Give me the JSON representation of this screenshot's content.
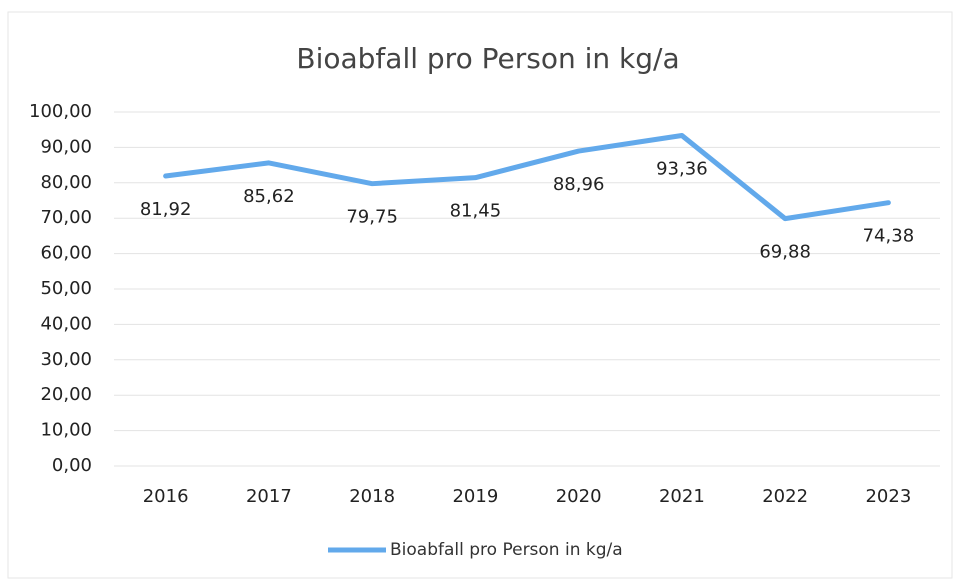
{
  "chart_data": {
    "type": "line",
    "title": "Bioabfall pro Person in kg/a",
    "categories": [
      "2016",
      "2017",
      "2018",
      "2019",
      "2020",
      "2021",
      "2022",
      "2023"
    ],
    "series": [
      {
        "name": "Bioabfall pro Person in kg/a",
        "color": "#62a9eb",
        "values": [
          81.92,
          85.62,
          79.75,
          81.45,
          88.96,
          93.36,
          69.88,
          74.38
        ],
        "value_labels": [
          "81,92",
          "85,62",
          "79,75",
          "81,45",
          "88,96",
          "93,36",
          "69,88",
          "74,38"
        ]
      }
    ],
    "ylim": [
      0,
      100
    ],
    "yticks": [
      {
        "value": 0,
        "label": "0,00"
      },
      {
        "value": 10,
        "label": "10,00"
      },
      {
        "value": 20,
        "label": "20,00"
      },
      {
        "value": 30,
        "label": "30,00"
      },
      {
        "value": 40,
        "label": "40,00"
      },
      {
        "value": 50,
        "label": "50,00"
      },
      {
        "value": 60,
        "label": "60,00"
      },
      {
        "value": 70,
        "label": "70,00"
      },
      {
        "value": 80,
        "label": "80,00"
      },
      {
        "value": 90,
        "label": "90,00"
      },
      {
        "value": 100,
        "label": "100,00"
      }
    ],
    "grid": true,
    "legend": "bottom"
  }
}
